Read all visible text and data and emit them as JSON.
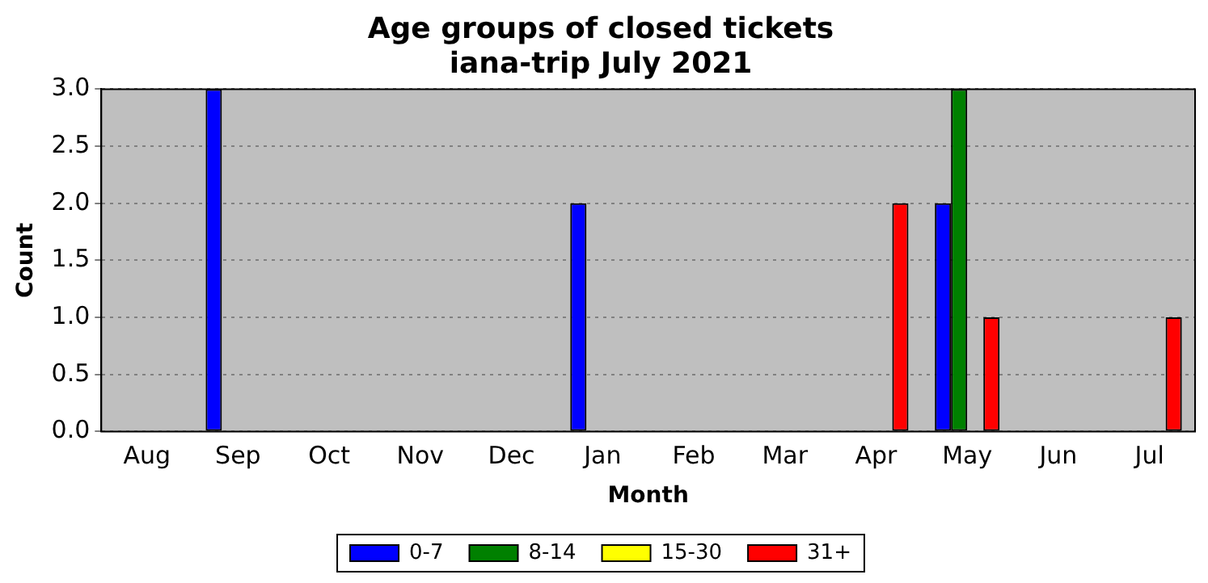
{
  "chart_data": {
    "type": "bar",
    "title": "Age groups of closed tickets",
    "subtitle": "iana-trip July 2021",
    "xlabel": "Month",
    "ylabel": "Count",
    "categories": [
      "Aug",
      "Sep",
      "Oct",
      "Nov",
      "Dec",
      "Jan",
      "Feb",
      "Mar",
      "Apr",
      "May",
      "Jun",
      "Jul"
    ],
    "series": [
      {
        "name": "0-7",
        "color": "#0000ff",
        "values": [
          0,
          3,
          0,
          0,
          0,
          2,
          0,
          0,
          0,
          2,
          0,
          0
        ]
      },
      {
        "name": "8-14",
        "color": "#008000",
        "values": [
          0,
          0,
          0,
          0,
          0,
          0,
          0,
          0,
          0,
          3,
          0,
          0
        ]
      },
      {
        "name": "15-30",
        "color": "#ffff00",
        "values": [
          0,
          0,
          0,
          0,
          0,
          0,
          0,
          0,
          0,
          0,
          0,
          0
        ]
      },
      {
        "name": "31+",
        "color": "#ff0000",
        "values": [
          0,
          0,
          0,
          0,
          0,
          0,
          0,
          0,
          2,
          1,
          0,
          1
        ]
      }
    ],
    "ylim": [
      0,
      3
    ],
    "yticks": [
      {
        "value": 0,
        "label": "0.0"
      },
      0.5,
      {
        "value": 1,
        "label": "1.0"
      },
      1.5,
      {
        "value": 2,
        "label": "2.0"
      },
      2.5,
      {
        "value": 3,
        "label": "3.0"
      }
    ],
    "grid": "y",
    "legend": "bottom"
  }
}
